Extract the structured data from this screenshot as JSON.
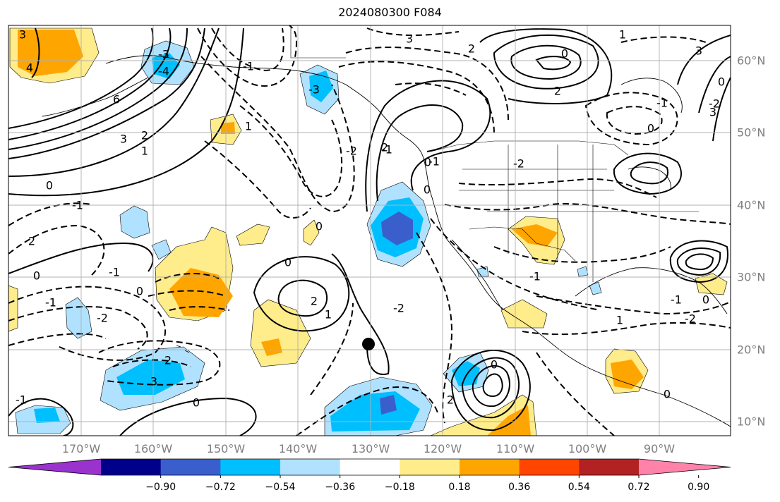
{
  "title": "2024080300 F084",
  "map": {
    "longitude_labels": [
      "170°W",
      "160°W",
      "150°W",
      "140°W",
      "130°W",
      "120°W",
      "110°W",
      "100°W",
      "90°W"
    ],
    "latitude_labels": [
      "60°N",
      "50°N",
      "40°N",
      "30°N",
      "20°N",
      "10°N"
    ],
    "grid": true,
    "contour_labels": [
      {
        "text": "3"
      },
      {
        "text": "4"
      },
      {
        "text": "-3"
      },
      {
        "text": "-4"
      },
      {
        "text": "6"
      },
      {
        "text": "3"
      },
      {
        "text": "2"
      },
      {
        "text": "1"
      },
      {
        "text": "-3"
      },
      {
        "text": "1"
      },
      {
        "text": "0"
      },
      {
        "text": "-1"
      },
      {
        "text": "2"
      },
      {
        "text": "0"
      },
      {
        "text": "-1"
      },
      {
        "text": "-2"
      },
      {
        "text": "0"
      },
      {
        "text": "-1"
      },
      {
        "text": "2"
      },
      {
        "text": "3"
      },
      {
        "text": "0"
      },
      {
        "text": "-1"
      },
      {
        "text": "-2"
      },
      {
        "text": "-1"
      },
      {
        "text": "0"
      },
      {
        "text": "-1"
      },
      {
        "text": "-2"
      },
      {
        "text": "0"
      },
      {
        "text": "0"
      },
      {
        "text": "2"
      },
      {
        "text": "1"
      },
      {
        "text": "-2"
      },
      {
        "text": "-1"
      },
      {
        "text": "0"
      },
      {
        "text": "0"
      },
      {
        "text": "-1"
      },
      {
        "text": "2"
      },
      {
        "text": "0"
      },
      {
        "text": "1"
      },
      {
        "text": "3"
      },
      {
        "text": "0"
      },
      {
        "text": "-2"
      },
      {
        "text": "-1"
      },
      {
        "text": "-2"
      },
      {
        "text": "1"
      },
      {
        "text": "2"
      },
      {
        "text": "0"
      },
      {
        "text": "0"
      },
      {
        "text": "3"
      },
      {
        "text": "0"
      },
      {
        "text": "2"
      },
      {
        "text": "3"
      },
      {
        "text": "-1"
      },
      {
        "text": "2"
      }
    ],
    "marker": {
      "symbol": "filled circle",
      "color": "#000000"
    }
  },
  "colorbar": {
    "ticks": [
      "−0.90",
      "−0.72",
      "−0.54",
      "−0.36",
      "−0.18",
      "0.18",
      "0.36",
      "0.54",
      "0.72",
      "0.90"
    ],
    "colors": [
      "#9a32cd",
      "#00008b",
      "#3a5fcd",
      "#00bfff",
      "#b0e2ff",
      "#ffffff",
      "#ffec8b",
      "#ffa500",
      "#ff4500",
      "#b22222",
      "#ff82ab"
    ]
  }
}
